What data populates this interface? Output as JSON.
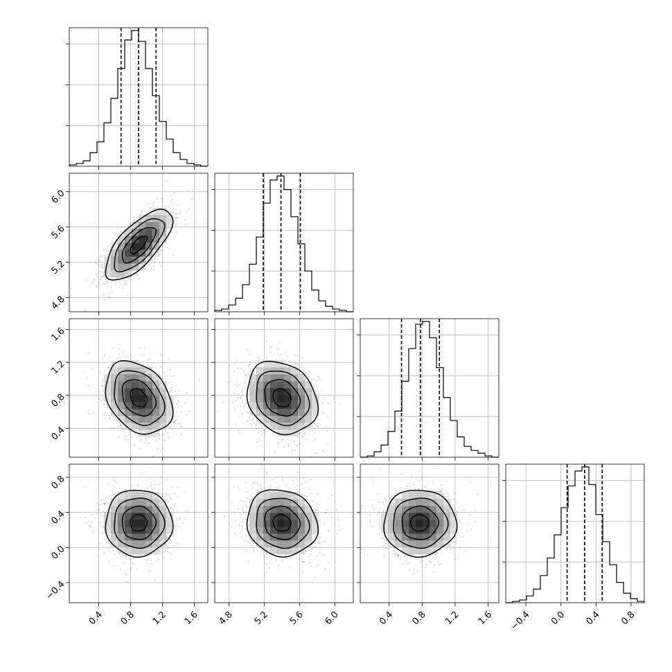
{
  "chart_data": {
    "type": "corner",
    "parameters": [
      {
        "ticks": [
          {
            "v": 0.4,
            "label": "0.4"
          },
          {
            "v": 0.8,
            "label": "0.8"
          },
          {
            "v": 1.2,
            "label": "1.2"
          },
          {
            "v": 1.6,
            "label": "1.6"
          }
        ]
      },
      {
        "ticks": [
          {
            "v": 4.8,
            "label": "4.8"
          },
          {
            "v": 5.2,
            "label": "5.2"
          },
          {
            "v": 5.6,
            "label": "5.6"
          },
          {
            "v": 6.0,
            "label": "6.0"
          }
        ]
      },
      {
        "ticks": [
          {
            "v": 0.4,
            "label": "0.4"
          },
          {
            "v": 0.8,
            "label": "0.8"
          },
          {
            "v": 1.2,
            "label": "1.2"
          },
          {
            "v": 1.6,
            "label": "1.6"
          }
        ]
      },
      {
        "ticks": [
          {
            "v": -0.4,
            "label": "−0.4"
          },
          {
            "v": 0.0,
            "label": "0.0"
          },
          {
            "v": 0.4,
            "label": "0.4"
          },
          {
            "v": 0.8,
            "label": "0.8"
          }
        ]
      }
    ],
    "ranges": [
      [
        0.03,
        1.77
      ],
      [
        4.64,
        6.21
      ],
      [
        0.05,
        1.73
      ],
      [
        -0.63,
        0.95
      ]
    ],
    "histograms": [
      {
        "counts": [
          0.01,
          0.02,
          0.04,
          0.1,
          0.18,
          0.32,
          0.5,
          0.72,
          0.93,
          1.0,
          0.92,
          0.72,
          0.52,
          0.33,
          0.2,
          0.1,
          0.05,
          0.02,
          0.01,
          0.0
        ]
      },
      {
        "counts": [
          0.01,
          0.02,
          0.05,
          0.1,
          0.2,
          0.35,
          0.55,
          0.8,
          0.97,
          1.0,
          0.9,
          0.7,
          0.5,
          0.3,
          0.16,
          0.08,
          0.04,
          0.02,
          0.01,
          0.0
        ]
      },
      {
        "counts": [
          0.0,
          0.01,
          0.04,
          0.09,
          0.19,
          0.34,
          0.56,
          0.8,
          0.98,
          1.0,
          0.88,
          0.66,
          0.44,
          0.27,
          0.15,
          0.08,
          0.05,
          0.03,
          0.01,
          0.0
        ]
      },
      {
        "counts": [
          0.0,
          0.01,
          0.02,
          0.05,
          0.1,
          0.2,
          0.33,
          0.5,
          0.7,
          0.86,
          0.97,
          1.0,
          0.87,
          0.65,
          0.45,
          0.28,
          0.15,
          0.07,
          0.03,
          0.01
        ]
      }
    ],
    "quantiles": [
      [
        0.68,
        0.9,
        1.12
      ],
      [
        5.19,
        5.39,
        5.61
      ],
      [
        0.55,
        0.78,
        1.01
      ],
      [
        0.07,
        0.27,
        0.47
      ]
    ],
    "distribution": {
      "means": [
        0.9,
        5.4,
        0.77,
        0.28
      ],
      "sds": [
        0.21,
        0.2,
        0.22,
        0.19
      ],
      "correlations": [
        [
          1.0,
          0.7,
          -0.3,
          0.0
        ],
        [
          0.7,
          1.0,
          -0.2,
          -0.1
        ],
        [
          -0.3,
          -0.2,
          1.0,
          0.0
        ],
        [
          0.0,
          -0.1,
          0.0,
          1.0
        ]
      ]
    },
    "contour_levels_sigma": [
      0.5,
      1.0,
      1.5,
      2.0
    ],
    "grid": true
  }
}
